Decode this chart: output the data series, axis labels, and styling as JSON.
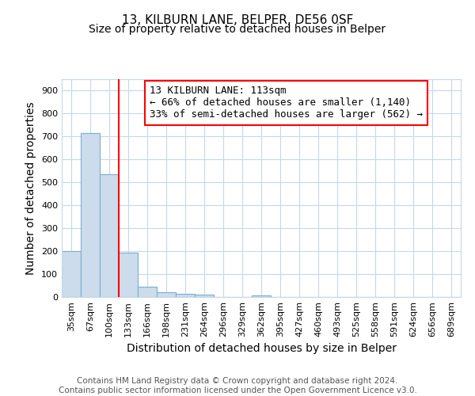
{
  "title1": "13, KILBURN LANE, BELPER, DE56 0SF",
  "title2": "Size of property relative to detached houses in Belper",
  "xlabel": "Distribution of detached houses by size in Belper",
  "ylabel": "Number of detached properties",
  "categories": [
    "35sqm",
    "67sqm",
    "100sqm",
    "133sqm",
    "166sqm",
    "198sqm",
    "231sqm",
    "264sqm",
    "296sqm",
    "329sqm",
    "362sqm",
    "395sqm",
    "427sqm",
    "460sqm",
    "493sqm",
    "525sqm",
    "558sqm",
    "591sqm",
    "624sqm",
    "656sqm",
    "689sqm"
  ],
  "values": [
    200,
    715,
    537,
    193,
    44,
    21,
    15,
    11,
    0,
    0,
    8,
    0,
    0,
    0,
    0,
    0,
    0,
    0,
    0,
    0,
    0
  ],
  "bar_color": "#ccdcec",
  "bar_edge_color": "#7aaed0",
  "vline_x_index": 2,
  "vline_color": "red",
  "annotation_line1": "13 KILBURN LANE: 113sqm",
  "annotation_line2": "← 66% of detached houses are smaller (1,140)",
  "annotation_line3": "33% of semi-detached houses are larger (562) →",
  "annotation_box_color": "white",
  "annotation_box_edge_color": "red",
  "ylim": [
    0,
    950
  ],
  "yticks": [
    0,
    100,
    200,
    300,
    400,
    500,
    600,
    700,
    800,
    900
  ],
  "footer": "Contains HM Land Registry data © Crown copyright and database right 2024.\nContains public sector information licensed under the Open Government Licence v3.0.",
  "bg_color": "#ffffff",
  "plot_bg_color": "#ffffff",
  "grid_color": "#c5d8ea",
  "title_fontsize": 11,
  "subtitle_fontsize": 10,
  "label_fontsize": 10,
  "tick_fontsize": 8,
  "annotation_fontsize": 9,
  "footer_fontsize": 7.5
}
